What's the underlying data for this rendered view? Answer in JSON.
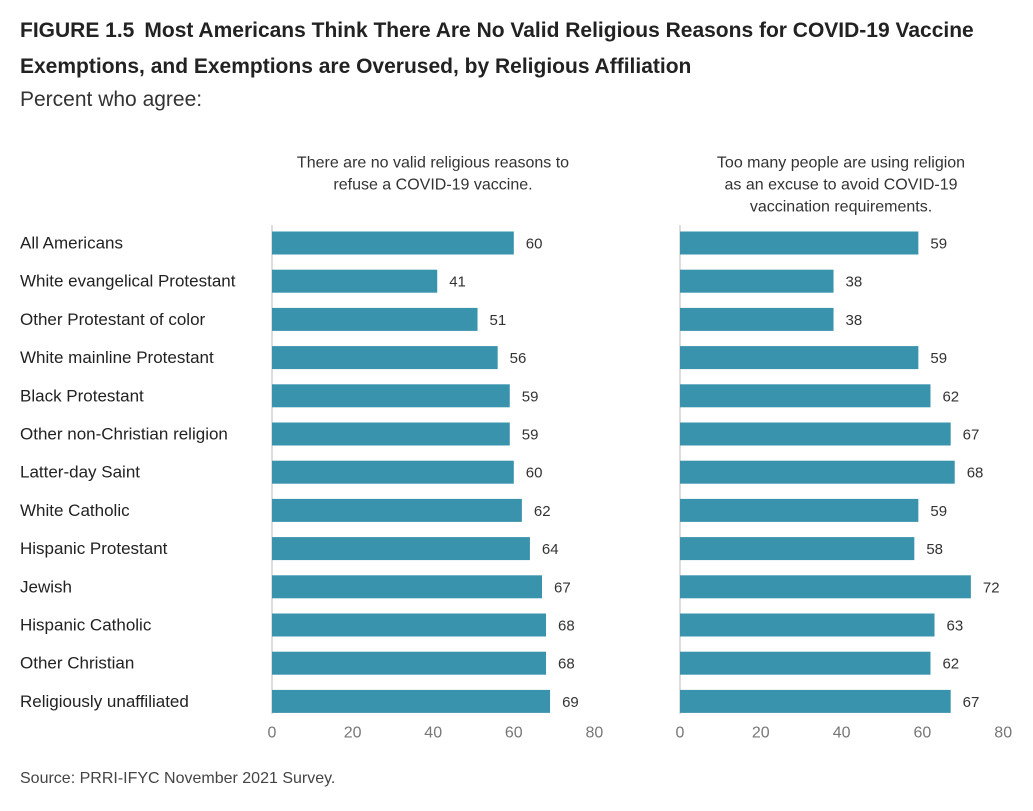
{
  "figure": {
    "label": "FIGURE 1.5",
    "title": "Most Americans Think There Are No Valid Religious Reasons for COVID-19 Vaccine Exemptions, and Exemptions are Overused, by Religious Affiliation",
    "subtitle": "Percent who agree:",
    "source": "Source: PRRI-IFYC November 2021 Survey."
  },
  "colors": {
    "bar": "#3a93ad",
    "axis": "#bbbbbb"
  },
  "chart_data": [
    {
      "type": "bar",
      "orientation": "horizontal",
      "title_lines": [
        "There are no valid religious reasons to",
        "refuse a COVID-19 vaccine."
      ],
      "categories": [
        "All Americans",
        "White evangelical Protestant",
        "Other Protestant of color",
        "White mainline Protestant",
        "Black Protestant",
        "Other non-Christian religion",
        "Latter-day Saint",
        "White Catholic",
        "Hispanic Protestant",
        "Jewish",
        "Hispanic Catholic",
        "Other Christian",
        "Religiously unaffiliated"
      ],
      "values": [
        60,
        41,
        51,
        56,
        59,
        59,
        60,
        62,
        64,
        67,
        68,
        68,
        69
      ],
      "xlim": [
        0,
        80
      ],
      "ticks": [
        0,
        20,
        40,
        60,
        80
      ]
    },
    {
      "type": "bar",
      "orientation": "horizontal",
      "title_lines": [
        "Too many people are using religion",
        "as an excuse to avoid COVID-19",
        "vaccination requirements."
      ],
      "categories": [
        "All Americans",
        "White evangelical Protestant",
        "Other Protestant of color",
        "White mainline Protestant",
        "Black Protestant",
        "Other non-Christian religion",
        "Latter-day Saint",
        "White Catholic",
        "Hispanic Protestant",
        "Jewish",
        "Hispanic Catholic",
        "Other Christian",
        "Religiously unaffiliated"
      ],
      "values": [
        59,
        38,
        38,
        59,
        62,
        67,
        68,
        59,
        58,
        72,
        63,
        62,
        67
      ],
      "xlim": [
        0,
        80
      ],
      "ticks": [
        0,
        20,
        40,
        60,
        80
      ]
    }
  ]
}
